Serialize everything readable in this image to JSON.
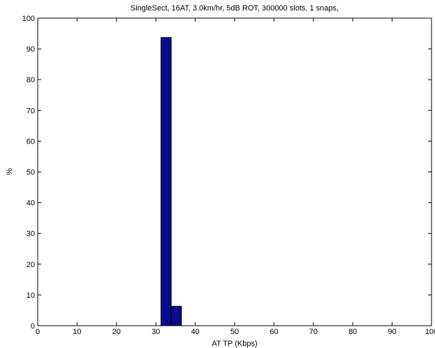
{
  "chart_data": {
    "type": "bar",
    "title": "SingleSect, 16AT, 3.0km/hr, 5dB ROT, 300000 slots, 1 snaps,",
    "xlabel": "AT TP (Kbps)",
    "ylabel": "%",
    "xlim": [
      0,
      100
    ],
    "ylim": [
      0,
      100
    ],
    "xticks": [
      0,
      10,
      20,
      30,
      40,
      50,
      60,
      70,
      80,
      90,
      100
    ],
    "yticks": [
      0,
      10,
      20,
      30,
      40,
      50,
      60,
      70,
      80,
      90,
      100
    ],
    "grid": false,
    "bars": [
      {
        "x0": 31.3,
        "x1": 33.9,
        "value": 93.7
      },
      {
        "x0": 33.9,
        "x1": 36.5,
        "value": 6.3
      }
    ],
    "colors": {
      "bar_fill": "#0a0a8c",
      "bar_edge": "#000000"
    }
  }
}
